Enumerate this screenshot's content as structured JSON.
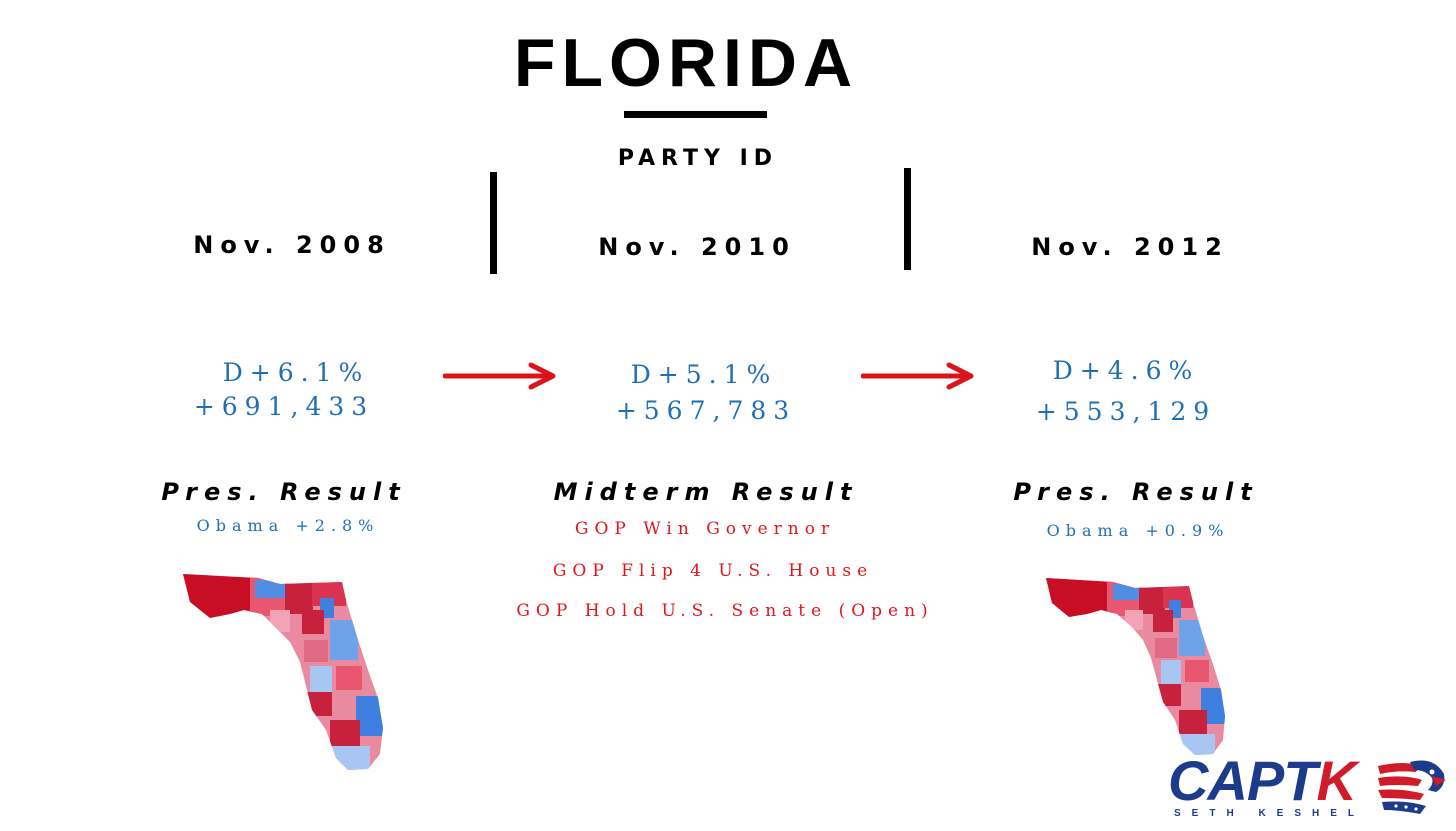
{
  "header": {
    "title": "FLORIDA",
    "subtitle": "PARTY ID"
  },
  "columns": [
    {
      "year": "Nov. 2008",
      "margin": "D+6.1%",
      "count": "+691,433",
      "result_heading": "Pres. Result",
      "result_lines": [
        "Obama +2.8%"
      ]
    },
    {
      "year": "Nov. 2010",
      "margin": "D+5.1%",
      "count": "+567,783",
      "result_heading": "Midterm Result",
      "result_lines": [
        "GOP Win Governor",
        "GOP Flip 4 U.S. House",
        "GOP Hold U.S. Senate (Open)"
      ]
    },
    {
      "year": "Nov. 2012",
      "margin": "D+4.6%",
      "count": "+553,129",
      "result_heading": "Pres. Result",
      "result_lines": [
        "Obama +0.9%"
      ]
    }
  ],
  "logo": {
    "text_blue": "CAPT",
    "text_red": "K",
    "tagline": "SETH KESHEL"
  },
  "colors": {
    "dem_blue": "#1f6fb5",
    "gop_red": "#e0161e",
    "arrow_red": "#d9141b",
    "logo_navy": "#1e3a8a"
  },
  "icons": {
    "arrow": "arrow-right-icon",
    "map": "florida-county-map",
    "mascot": "eagle-head-icon"
  }
}
